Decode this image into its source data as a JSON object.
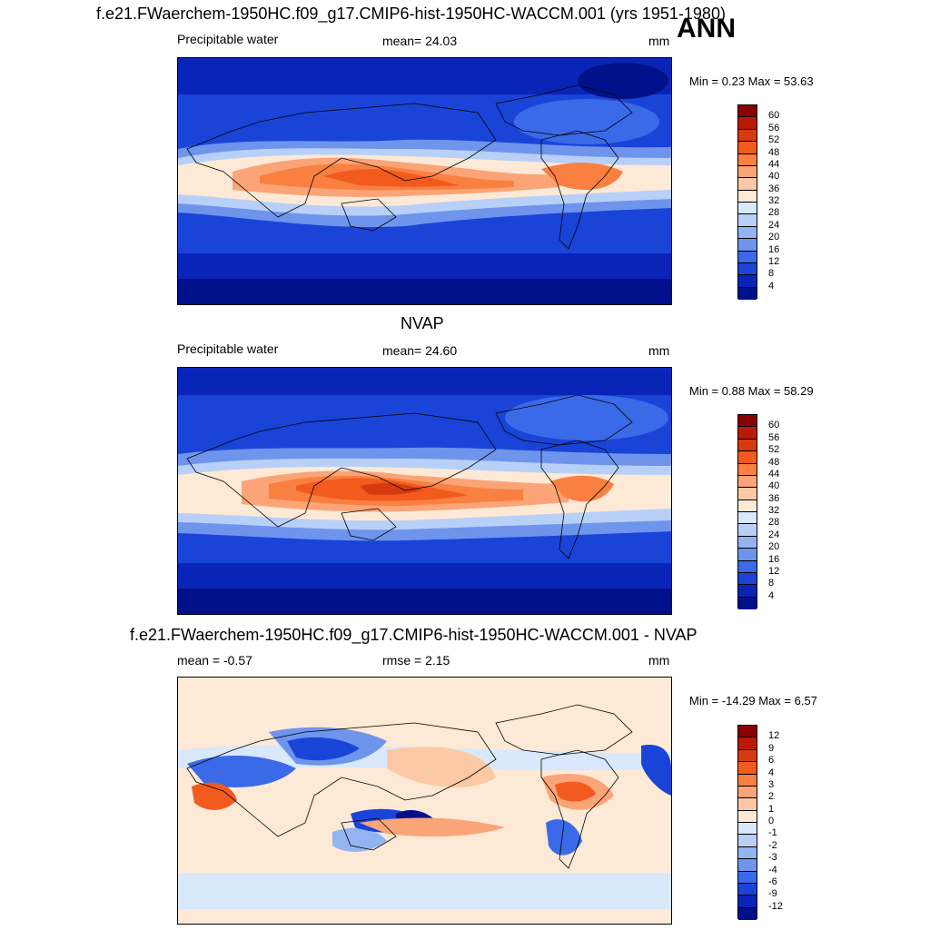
{
  "header": {
    "title": "f.e21.FWaerchem-1950HC.f09_g17.CMIP6-hist-1950HC-WACCM.001 (yrs 1951-1980)",
    "season": "ANN"
  },
  "panels": [
    {
      "id": "model",
      "title": "",
      "left_label": "Precipitable water",
      "center_label": "mean=  24.03",
      "units": "mm",
      "minmax": "Min =   0.23 Max =  53.63"
    },
    {
      "id": "obs",
      "title": "NVAP",
      "left_label": "Precipitable water",
      "center_label": "mean=  24.60",
      "units": "mm",
      "minmax": "Min =   0.88 Max =  58.29"
    },
    {
      "id": "diff",
      "title": "f.e21.FWaerchem-1950HC.f09_g17.CMIP6-hist-1950HC-WACCM.001 - NVAP",
      "left_label": "mean =  -0.57",
      "center_label": "rmse =   2.15",
      "units": "mm",
      "minmax": "Min = -14.29 Max =   6.57"
    }
  ],
  "colorbars": {
    "abs_levels": [
      "60",
      "56",
      "52",
      "48",
      "44",
      "40",
      "36",
      "32",
      "28",
      "24",
      "20",
      "16",
      "12",
      "8",
      "4"
    ],
    "abs_colors": [
      "#8b0000",
      "#b81a06",
      "#d83a10",
      "#f25a1e",
      "#f98040",
      "#fba478",
      "#fcc8a6",
      "#fde9d6",
      "#d9e8fb",
      "#b8d0f8",
      "#93b4f1",
      "#6e94ec",
      "#3b6ae8",
      "#1a44d8",
      "#0a24b8",
      "#00108a"
    ],
    "diff_levels": [
      "12",
      "9",
      "6",
      "4",
      "3",
      "2",
      "1",
      "0",
      "-1",
      "-2",
      "-3",
      "-4",
      "-6",
      "-9",
      "-12"
    ],
    "diff_colors": [
      "#8b0000",
      "#b81a06",
      "#d83a10",
      "#f25a1e",
      "#f98040",
      "#fba478",
      "#fcc8a6",
      "#fde9d6",
      "#d9e8fb",
      "#b8d0f8",
      "#93b4f1",
      "#6e94ec",
      "#3b6ae8",
      "#1a44d8",
      "#0a24b8",
      "#00108a"
    ]
  }
}
